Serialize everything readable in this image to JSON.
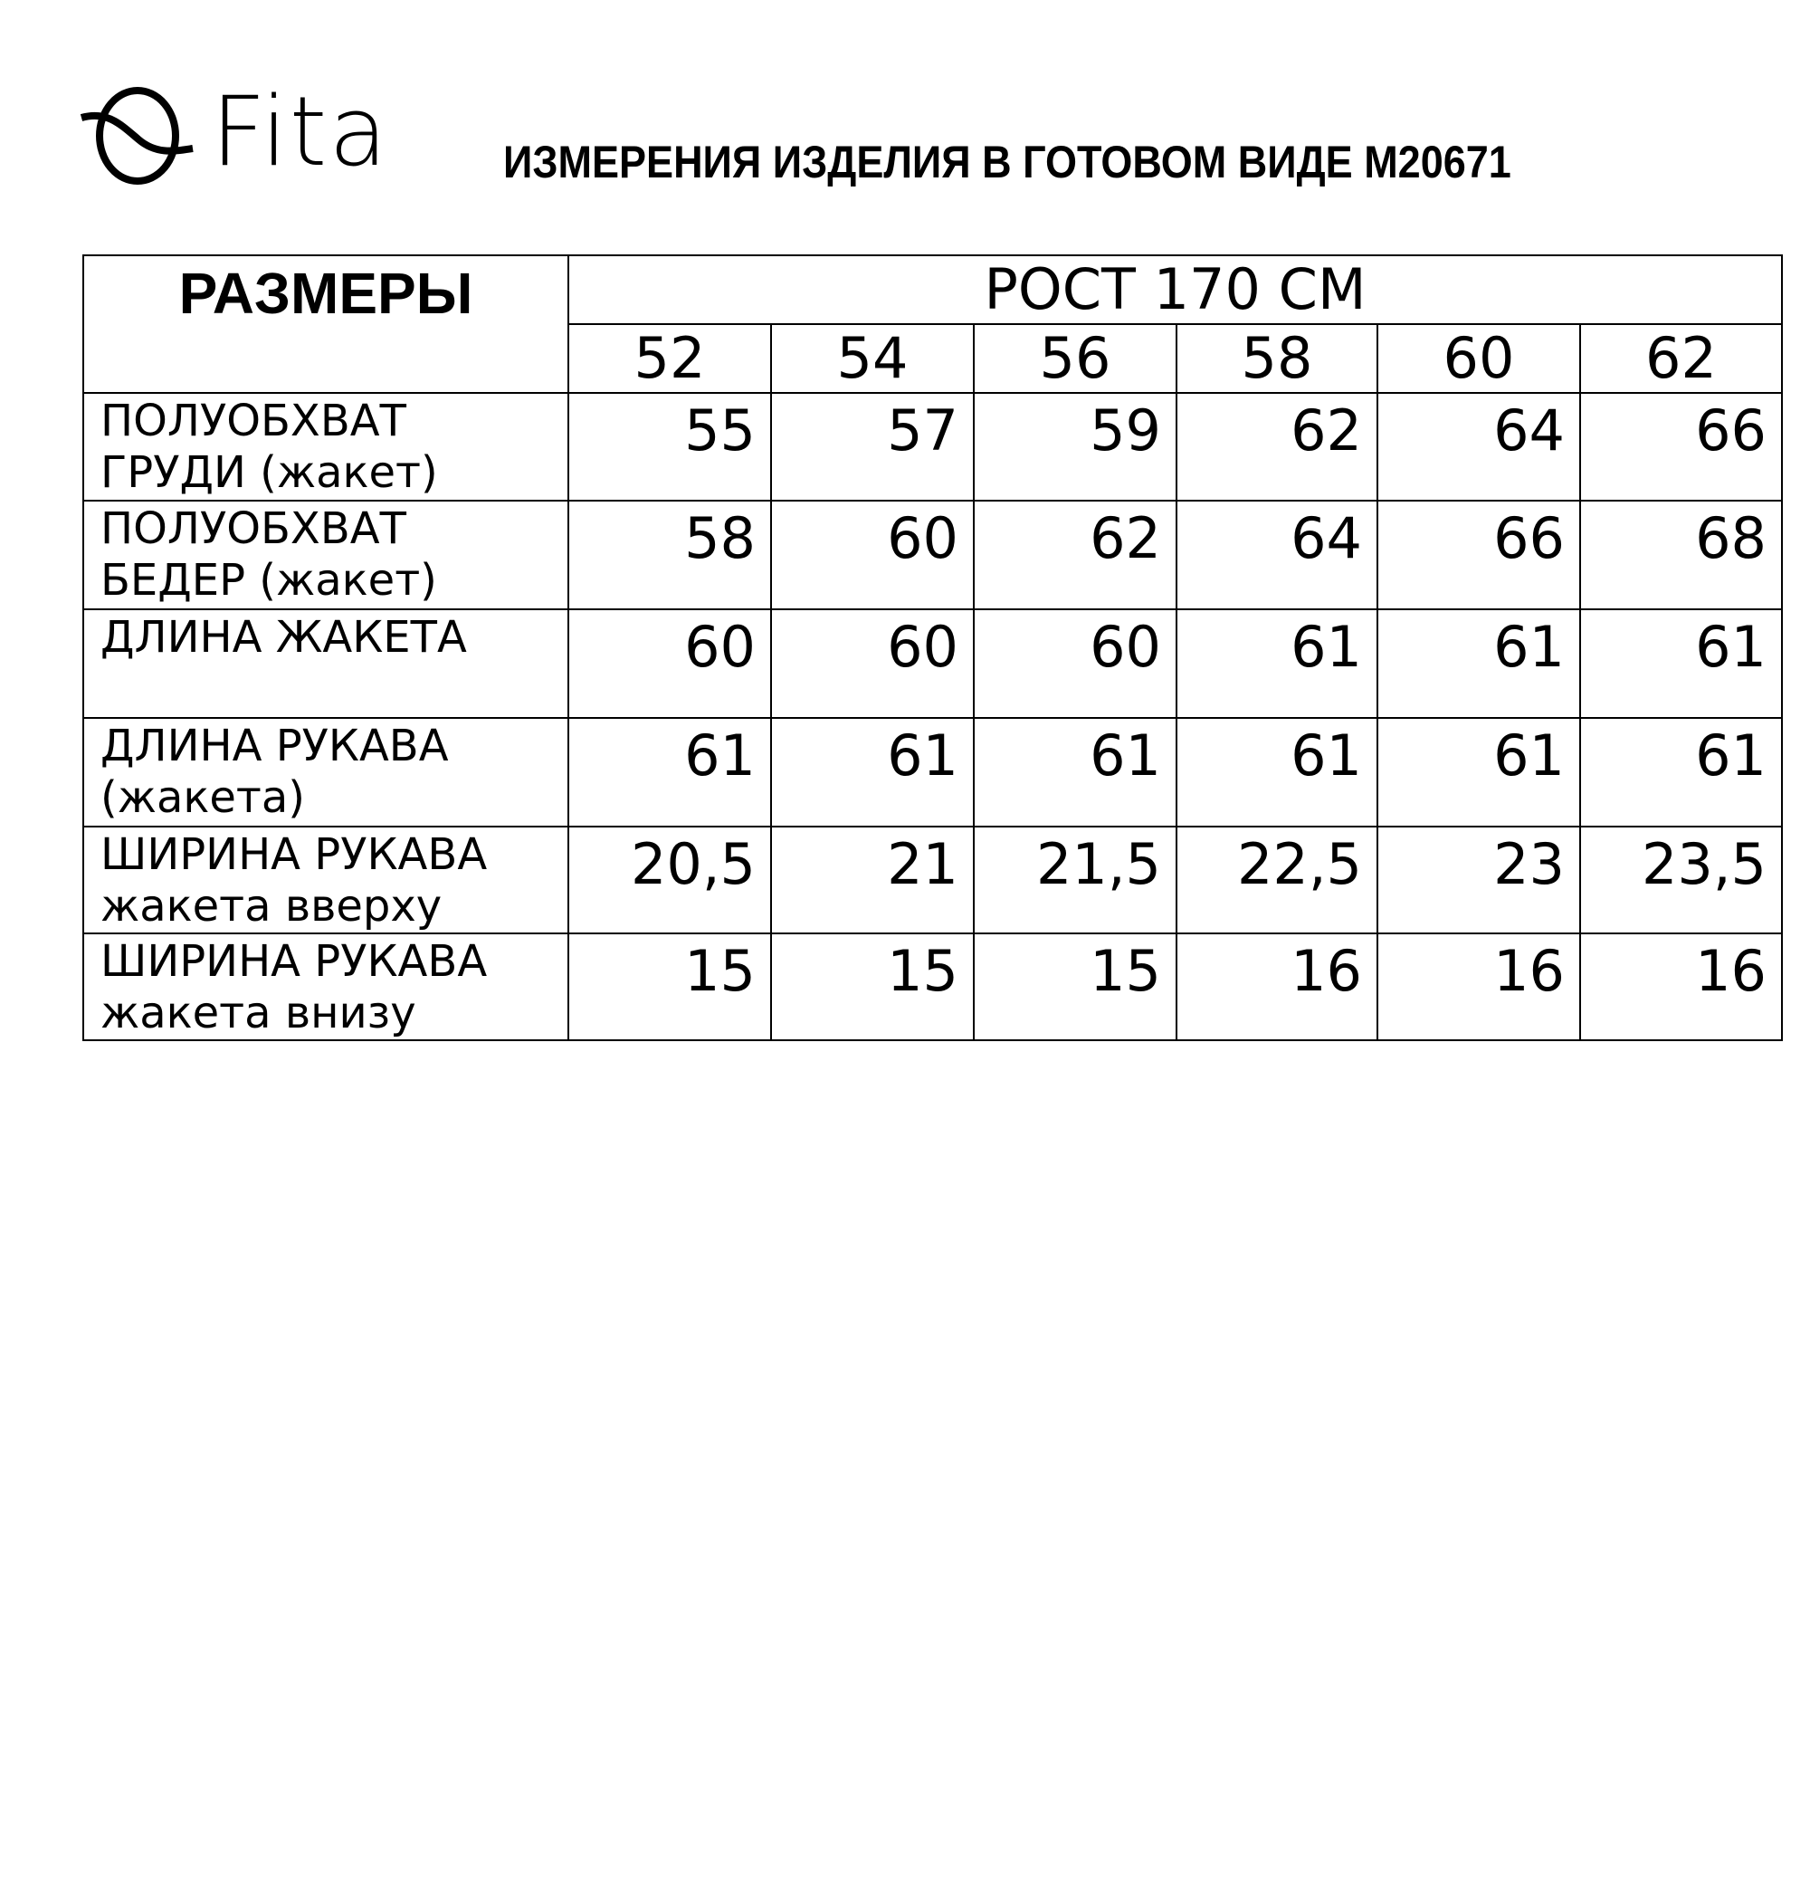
{
  "brand": {
    "name": "Fita"
  },
  "title": "ИЗМЕРЕНИЯ ИЗДЕЛИЯ В ГОТОВОМ ВИДЕ М20671",
  "table": {
    "sizes_header": "РАЗМЕРЫ",
    "height_header": "РОСТ 170 СМ",
    "sizes": [
      "52",
      "54",
      "56",
      "58",
      "60",
      "62"
    ],
    "rows": [
      {
        "label1": "ПОЛУОБХВАТ",
        "label2": "ГРУДИ (жакет)",
        "values": [
          "55",
          "57",
          "59",
          "62",
          "64",
          "66"
        ]
      },
      {
        "label1": "ПОЛУОБХВАТ",
        "label2": "БЕДЕР (жакет)",
        "values": [
          "58",
          "60",
          "62",
          "64",
          "66",
          "68"
        ]
      },
      {
        "label1": "ДЛИНА ЖАКЕТА",
        "label2": "",
        "values": [
          "60",
          "60",
          "60",
          "61",
          "61",
          "61"
        ]
      },
      {
        "label1": "ДЛИНА РУКАВА",
        "label2": "(жакета)",
        "values": [
          "61",
          "61",
          "61",
          "61",
          "61",
          "61"
        ]
      },
      {
        "label1": "ШИРИНА РУКАВА",
        "label2": "жакета вверху",
        "values": [
          "20,5",
          "21",
          "21,5",
          "22,5",
          "23",
          "23,5"
        ]
      },
      {
        "label1": "ШИРИНА РУКАВА",
        "label2": "жакета внизу",
        "values": [
          "15",
          "15",
          "15",
          "16",
          "16",
          "16"
        ]
      }
    ]
  }
}
